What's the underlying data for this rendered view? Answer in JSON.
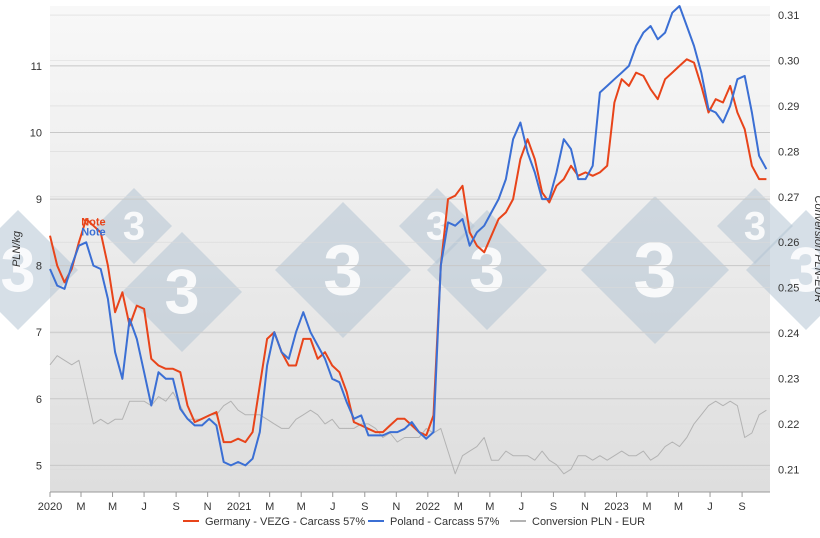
{
  "chart_data": {
    "type": "line",
    "title": "",
    "ylabel": "PLN/kg",
    "y2label": "Conversion PLN-EUR",
    "ylim": [
      4.6,
      11.9
    ],
    "y2lim": [
      0.205,
      0.312
    ],
    "xlim": [
      "2020-01-01",
      "2023-10-25"
    ],
    "y_ticks": [
      "5",
      "6",
      "7",
      "8",
      "9",
      "10",
      "11"
    ],
    "y2_ticks": [
      "0.21",
      "0.22",
      "0.23",
      "0.24",
      "0.25",
      "0.26",
      "0.27",
      "0.28",
      "0.29",
      "0.30",
      "0.31"
    ],
    "x_ticks": [
      {
        "label": "2020",
        "date": "2020-01-01"
      },
      {
        "label": "M",
        "date": "2020-03-01"
      },
      {
        "label": "M",
        "date": "2020-05-01"
      },
      {
        "label": "J",
        "date": "2020-07-01"
      },
      {
        "label": "S",
        "date": "2020-09-01"
      },
      {
        "label": "N",
        "date": "2020-11-01"
      },
      {
        "label": "2021",
        "date": "2021-01-01"
      },
      {
        "label": "M",
        "date": "2021-03-01"
      },
      {
        "label": "M",
        "date": "2021-05-01"
      },
      {
        "label": "J",
        "date": "2021-07-01"
      },
      {
        "label": "S",
        "date": "2021-09-01"
      },
      {
        "label": "N",
        "date": "2021-11-01"
      },
      {
        "label": "2022",
        "date": "2022-01-01"
      },
      {
        "label": "M",
        "date": "2022-03-01"
      },
      {
        "label": "M",
        "date": "2022-05-01"
      },
      {
        "label": "J",
        "date": "2022-07-01"
      },
      {
        "label": "S",
        "date": "2022-09-01"
      },
      {
        "label": "N",
        "date": "2022-11-01"
      },
      {
        "label": "2023",
        "date": "2023-01-01"
      },
      {
        "label": "M",
        "date": "2023-03-01"
      },
      {
        "label": "M",
        "date": "2023-05-01"
      },
      {
        "label": "J",
        "date": "2023-07-01"
      },
      {
        "label": "S",
        "date": "2023-09-01"
      }
    ],
    "grid": true,
    "legend_position": "bottom",
    "annotations": [
      {
        "text": "Note",
        "series": "Germany - VEZG - Carcass 57%",
        "date": "2020-03-25",
        "y": 8.6,
        "color": "#e8441a"
      },
      {
        "text": "Note",
        "series": "Poland - Carcass 57%",
        "date": "2020-03-25",
        "y": 8.45,
        "color": "#3b6fd4"
      }
    ],
    "series": [
      {
        "name": "Germany - VEZG - Carcass 57%",
        "axis": "left",
        "color": "#e8441a",
        "x": [
          "2020-01-01",
          "2020-01-15",
          "2020-01-29",
          "2020-02-12",
          "2020-02-26",
          "2020-03-11",
          "2020-03-25",
          "2020-04-08",
          "2020-04-22",
          "2020-05-06",
          "2020-05-20",
          "2020-06-03",
          "2020-06-17",
          "2020-07-01",
          "2020-07-15",
          "2020-07-29",
          "2020-08-12",
          "2020-08-26",
          "2020-09-09",
          "2020-09-23",
          "2020-10-07",
          "2020-10-21",
          "2020-11-04",
          "2020-11-18",
          "2020-12-02",
          "2020-12-16",
          "2020-12-30",
          "2021-01-13",
          "2021-01-27",
          "2021-02-10",
          "2021-02-24",
          "2021-03-10",
          "2021-03-24",
          "2021-04-07",
          "2021-04-21",
          "2021-05-05",
          "2021-05-19",
          "2021-06-02",
          "2021-06-16",
          "2021-06-30",
          "2021-07-14",
          "2021-07-28",
          "2021-08-11",
          "2021-08-25",
          "2021-09-08",
          "2021-09-22",
          "2021-10-06",
          "2021-10-20",
          "2021-11-03",
          "2021-11-17",
          "2021-12-01",
          "2021-12-15",
          "2021-12-29",
          "2022-01-12",
          "2022-01-26",
          "2022-02-09",
          "2022-02-23",
          "2022-03-09",
          "2022-03-23",
          "2022-04-06",
          "2022-04-20",
          "2022-05-04",
          "2022-05-18",
          "2022-06-01",
          "2022-06-15",
          "2022-06-29",
          "2022-07-13",
          "2022-07-27",
          "2022-08-10",
          "2022-08-24",
          "2022-09-07",
          "2022-09-21",
          "2022-10-05",
          "2022-10-19",
          "2022-11-02",
          "2022-11-16",
          "2022-11-30",
          "2022-12-14",
          "2022-12-28",
          "2023-01-11",
          "2023-01-25",
          "2023-02-08",
          "2023-02-22",
          "2023-03-08",
          "2023-03-22",
          "2023-04-05",
          "2023-04-19",
          "2023-05-03",
          "2023-05-17",
          "2023-05-31",
          "2023-06-14",
          "2023-06-28",
          "2023-07-12",
          "2023-07-26",
          "2023-08-09",
          "2023-08-23",
          "2023-09-06",
          "2023-09-20",
          "2023-10-04",
          "2023-10-18"
        ],
        "y": [
          8.45,
          8.0,
          7.75,
          7.95,
          8.35,
          8.7,
          8.6,
          8.5,
          8.0,
          7.3,
          7.6,
          7.1,
          7.4,
          7.35,
          6.6,
          6.5,
          6.45,
          6.45,
          6.4,
          5.9,
          5.65,
          5.7,
          5.75,
          5.8,
          5.35,
          5.35,
          5.4,
          5.35,
          5.5,
          6.2,
          6.9,
          7.0,
          6.7,
          6.5,
          6.5,
          6.9,
          6.9,
          6.6,
          6.7,
          6.5,
          6.4,
          6.1,
          5.65,
          5.6,
          5.55,
          5.5,
          5.5,
          5.6,
          5.7,
          5.7,
          5.6,
          5.5,
          5.45,
          5.75,
          8.0,
          9.0,
          9.05,
          9.2,
          8.5,
          8.3,
          8.2,
          8.45,
          8.7,
          8.8,
          9.0,
          9.6,
          9.9,
          9.6,
          9.1,
          8.95,
          9.2,
          9.3,
          9.5,
          9.35,
          9.4,
          9.35,
          9.4,
          9.5,
          10.45,
          10.8,
          10.7,
          10.9,
          10.85,
          10.65,
          10.5,
          10.8,
          10.9,
          11.0,
          11.1,
          11.05,
          10.7,
          10.3,
          10.5,
          10.45,
          10.7,
          10.3,
          10.05,
          9.5,
          9.3,
          9.3
        ]
      },
      {
        "name": "Poland - Carcass 57%",
        "axis": "left",
        "color": "#3b6fd4",
        "x": [
          "2020-01-01",
          "2020-01-15",
          "2020-01-29",
          "2020-02-12",
          "2020-02-26",
          "2020-03-11",
          "2020-03-25",
          "2020-04-08",
          "2020-04-22",
          "2020-05-06",
          "2020-05-20",
          "2020-06-03",
          "2020-06-17",
          "2020-07-01",
          "2020-07-15",
          "2020-07-29",
          "2020-08-12",
          "2020-08-26",
          "2020-09-09",
          "2020-09-23",
          "2020-10-07",
          "2020-10-21",
          "2020-11-04",
          "2020-11-18",
          "2020-12-02",
          "2020-12-16",
          "2020-12-30",
          "2021-01-13",
          "2021-01-27",
          "2021-02-10",
          "2021-02-24",
          "2021-03-10",
          "2021-03-24",
          "2021-04-07",
          "2021-04-21",
          "2021-05-05",
          "2021-05-19",
          "2021-06-02",
          "2021-06-16",
          "2021-06-30",
          "2021-07-14",
          "2021-07-28",
          "2021-08-11",
          "2021-08-25",
          "2021-09-08",
          "2021-09-22",
          "2021-10-06",
          "2021-10-20",
          "2021-11-03",
          "2021-11-17",
          "2021-12-01",
          "2021-12-15",
          "2021-12-29",
          "2022-01-12",
          "2022-01-26",
          "2022-02-09",
          "2022-02-23",
          "2022-03-09",
          "2022-03-23",
          "2022-04-06",
          "2022-04-20",
          "2022-05-04",
          "2022-05-18",
          "2022-06-01",
          "2022-06-15",
          "2022-06-29",
          "2022-07-13",
          "2022-07-27",
          "2022-08-10",
          "2022-08-24",
          "2022-09-07",
          "2022-09-21",
          "2022-10-05",
          "2022-10-19",
          "2022-11-02",
          "2022-11-16",
          "2022-11-30",
          "2022-12-14",
          "2022-12-28",
          "2023-01-11",
          "2023-01-25",
          "2023-02-08",
          "2023-02-22",
          "2023-03-08",
          "2023-03-22",
          "2023-04-05",
          "2023-04-19",
          "2023-05-03",
          "2023-05-17",
          "2023-05-31",
          "2023-06-14",
          "2023-06-28",
          "2023-07-12",
          "2023-07-26",
          "2023-08-09",
          "2023-08-23",
          "2023-09-06",
          "2023-09-20",
          "2023-10-04",
          "2023-10-18"
        ],
        "y": [
          7.95,
          7.7,
          7.65,
          8.0,
          8.3,
          8.35,
          8.0,
          7.95,
          7.5,
          6.7,
          6.3,
          7.2,
          6.9,
          6.4,
          5.9,
          6.4,
          6.3,
          6.3,
          5.85,
          5.7,
          5.6,
          5.6,
          5.7,
          5.6,
          5.05,
          5.0,
          5.05,
          5.0,
          5.1,
          5.5,
          6.5,
          7.0,
          6.7,
          6.6,
          7.0,
          7.3,
          7.0,
          6.8,
          6.6,
          6.3,
          6.25,
          5.95,
          5.7,
          5.75,
          5.45,
          5.45,
          5.45,
          5.5,
          5.5,
          5.55,
          5.65,
          5.5,
          5.4,
          5.5,
          8.0,
          8.65,
          8.6,
          8.7,
          8.3,
          8.5,
          8.6,
          8.8,
          9.0,
          9.3,
          9.9,
          10.15,
          9.7,
          9.4,
          9.0,
          9.0,
          9.4,
          9.9,
          9.75,
          9.3,
          9.3,
          9.5,
          10.6,
          10.7,
          10.8,
          10.9,
          11.0,
          11.3,
          11.5,
          11.6,
          11.4,
          11.5,
          11.8,
          11.9,
          11.6,
          11.3,
          10.9,
          10.35,
          10.3,
          10.15,
          10.4,
          10.8,
          10.85,
          10.3,
          9.65,
          9.45
        ]
      },
      {
        "name": "Conversion PLN - EUR",
        "axis": "right",
        "color": "#b3b3b3",
        "x": [
          "2020-01-01",
          "2020-01-15",
          "2020-01-29",
          "2020-02-12",
          "2020-02-26",
          "2020-03-11",
          "2020-03-25",
          "2020-04-08",
          "2020-04-22",
          "2020-05-06",
          "2020-05-20",
          "2020-06-03",
          "2020-06-17",
          "2020-07-01",
          "2020-07-15",
          "2020-07-29",
          "2020-08-12",
          "2020-08-26",
          "2020-09-09",
          "2020-09-23",
          "2020-10-07",
          "2020-10-21",
          "2020-11-04",
          "2020-11-18",
          "2020-12-02",
          "2020-12-16",
          "2020-12-30",
          "2021-01-13",
          "2021-01-27",
          "2021-02-10",
          "2021-02-24",
          "2021-03-10",
          "2021-03-24",
          "2021-04-07",
          "2021-04-21",
          "2021-05-05",
          "2021-05-19",
          "2021-06-02",
          "2021-06-16",
          "2021-06-30",
          "2021-07-14",
          "2021-07-28",
          "2021-08-11",
          "2021-08-25",
          "2021-09-08",
          "2021-09-22",
          "2021-10-06",
          "2021-10-20",
          "2021-11-03",
          "2021-11-17",
          "2021-12-01",
          "2021-12-15",
          "2021-12-29",
          "2022-01-12",
          "2022-01-26",
          "2022-02-09",
          "2022-02-23",
          "2022-03-09",
          "2022-03-23",
          "2022-04-06",
          "2022-04-20",
          "2022-05-04",
          "2022-05-18",
          "2022-06-01",
          "2022-06-15",
          "2022-06-29",
          "2022-07-13",
          "2022-07-27",
          "2022-08-10",
          "2022-08-24",
          "2022-09-07",
          "2022-09-21",
          "2022-10-05",
          "2022-10-19",
          "2022-11-02",
          "2022-11-16",
          "2022-11-30",
          "2022-12-14",
          "2022-12-28",
          "2023-01-11",
          "2023-01-25",
          "2023-02-08",
          "2023-02-22",
          "2023-03-08",
          "2023-03-22",
          "2023-04-05",
          "2023-04-19",
          "2023-05-03",
          "2023-05-17",
          "2023-05-31",
          "2023-06-14",
          "2023-06-28",
          "2023-07-12",
          "2023-07-26",
          "2023-08-09",
          "2023-08-23",
          "2023-09-06",
          "2023-09-20",
          "2023-10-04",
          "2023-10-18"
        ],
        "y": [
          0.233,
          0.235,
          0.234,
          0.233,
          0.234,
          0.227,
          0.22,
          0.221,
          0.22,
          0.221,
          0.221,
          0.225,
          0.225,
          0.225,
          0.224,
          0.226,
          0.225,
          0.227,
          0.224,
          0.221,
          0.221,
          0.221,
          0.222,
          0.222,
          0.224,
          0.225,
          0.223,
          0.222,
          0.222,
          0.222,
          0.221,
          0.22,
          0.219,
          0.219,
          0.221,
          0.222,
          0.223,
          0.222,
          0.22,
          0.221,
          0.219,
          0.219,
          0.219,
          0.22,
          0.22,
          0.219,
          0.217,
          0.218,
          0.216,
          0.217,
          0.217,
          0.217,
          0.219,
          0.218,
          0.219,
          0.214,
          0.209,
          0.213,
          0.214,
          0.215,
          0.217,
          0.212,
          0.212,
          0.214,
          0.213,
          0.213,
          0.213,
          0.212,
          0.214,
          0.212,
          0.211,
          0.209,
          0.21,
          0.213,
          0.213,
          0.212,
          0.213,
          0.212,
          0.213,
          0.214,
          0.213,
          0.213,
          0.214,
          0.212,
          0.213,
          0.215,
          0.216,
          0.215,
          0.217,
          0.22,
          0.222,
          0.224,
          0.225,
          0.224,
          0.225,
          0.224,
          0.217,
          0.218,
          0.222,
          0.223
        ]
      }
    ]
  },
  "legend": {
    "items": [
      {
        "label": "Germany - VEZG - Carcass 57%",
        "color": "#e8441a"
      },
      {
        "label": "Poland - Carcass 57%",
        "color": "#3b6fd4"
      },
      {
        "label": "Conversion PLN - EUR",
        "color": "#b3b3b3"
      }
    ]
  },
  "watermark": {
    "glyph": "3"
  }
}
